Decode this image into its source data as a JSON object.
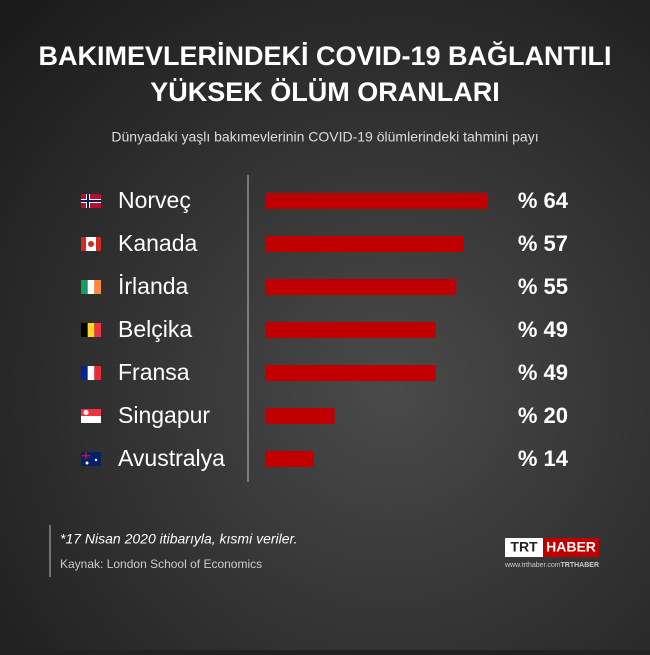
{
  "chart_data": {
    "type": "bar",
    "title": [
      "BAKIMEVLERİNDEKİ COVID-19 BAĞLANTILI",
      "YÜKSEK ÖLÜM ORANLARI"
    ],
    "subtitle": "Dünyadaki yaşlı bakımevlerinin COVID-19 ölümlerindeki tahmini payı",
    "categories": [
      "Norveç",
      "Kanada",
      "İrlanda",
      "Belçika",
      "Fransa",
      "Singapur",
      "Avustralya"
    ],
    "values": [
      64,
      57,
      55,
      49,
      49,
      20,
      14
    ],
    "value_labels": [
      "% 64",
      "% 57",
      "% 55",
      "% 49",
      "% 49",
      "% 20",
      "% 14"
    ],
    "color": "#c00000",
    "footnote": "*17 Nisan 2020 itibarıyla, kısmi veriler.",
    "source": "Kaynak: London School of Economics",
    "logo": [
      "TRT",
      "HABER"
    ],
    "website": "www.trthaber.com",
    "social": "TRTHABER"
  }
}
